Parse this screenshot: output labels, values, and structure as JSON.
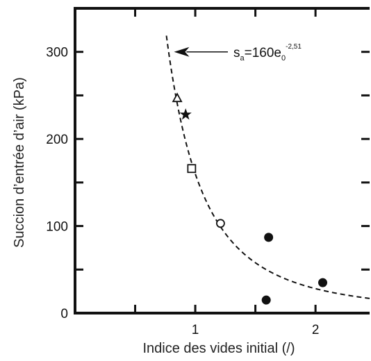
{
  "chart_data": {
    "type": "scatter",
    "xlabel": "Indice des vides initial (/)",
    "ylabel": "Succion d’entrée d’air (kPa)",
    "xlim": [
      0,
      2.45
    ],
    "ylim": [
      0,
      350
    ],
    "x_ticks": [
      1,
      2
    ],
    "x_tick_labels": [
      "1",
      "2"
    ],
    "y_ticks": [
      0,
      100,
      200,
      300
    ],
    "y_tick_labels": [
      "0",
      "100",
      "200",
      "300"
    ],
    "x_minor_ticks": [
      0.5,
      1,
      1.5,
      2
    ],
    "y_minor_ticks": [
      50,
      100,
      150,
      200,
      250,
      300
    ],
    "grid": false,
    "series": [
      {
        "marker": "triangle-open",
        "points": [
          {
            "x": 0.85,
            "y": 247
          }
        ]
      },
      {
        "marker": "star",
        "points": [
          {
            "x": 0.92,
            "y": 228
          }
        ]
      },
      {
        "marker": "square-open",
        "points": [
          {
            "x": 0.97,
            "y": 166
          }
        ]
      },
      {
        "marker": "circle-open",
        "points": [
          {
            "x": 1.21,
            "y": 103
          }
        ]
      },
      {
        "marker": "circle-filled",
        "points": [
          {
            "x": 1.61,
            "y": 87
          },
          {
            "x": 1.59,
            "y": 15
          },
          {
            "x": 2.06,
            "y": 35
          }
        ]
      }
    ],
    "fit_curve": {
      "formula": "s = 160·e0^-2.51",
      "coefficient": 160,
      "exponent": -2.51,
      "x_range": [
        0.76,
        2.45
      ],
      "style": "dashed"
    },
    "annotation": {
      "base": "s",
      "base_sub": "a",
      "middle": "=160e",
      "middle_sub": "0",
      "sup": "-2,51",
      "points_to": {
        "x": 0.8,
        "y": 300
      }
    }
  }
}
